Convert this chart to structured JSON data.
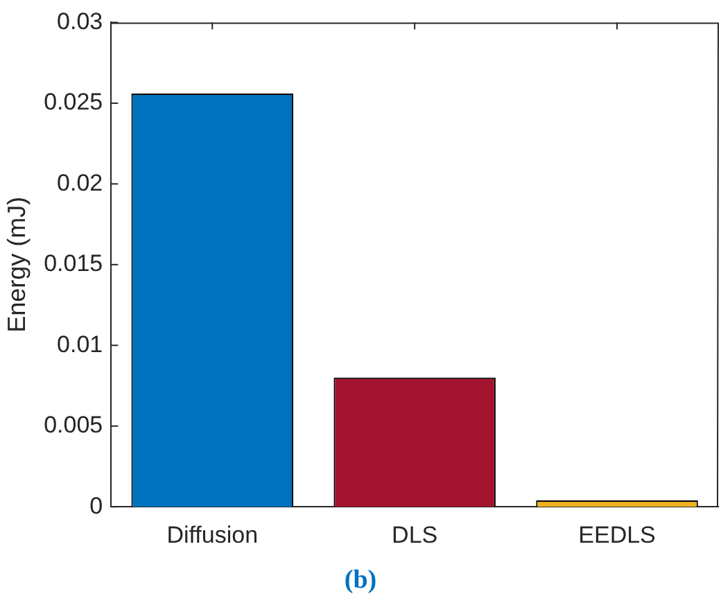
{
  "chart_data": {
    "type": "bar",
    "ylabel": "Energy (mJ)",
    "annotations": [
      "(b)"
    ],
    "categories": [
      "Diffusion",
      "DLS",
      "EEDLS"
    ],
    "values": [
      0.0256,
      0.008,
      0.0004
    ],
    "colors": [
      "#0072bd",
      "#a2142f",
      "#edb120"
    ],
    "ylim": [
      0,
      0.03
    ],
    "yticks": [
      0,
      0.005,
      0.01,
      0.015,
      0.02,
      0.025,
      0.03
    ]
  }
}
